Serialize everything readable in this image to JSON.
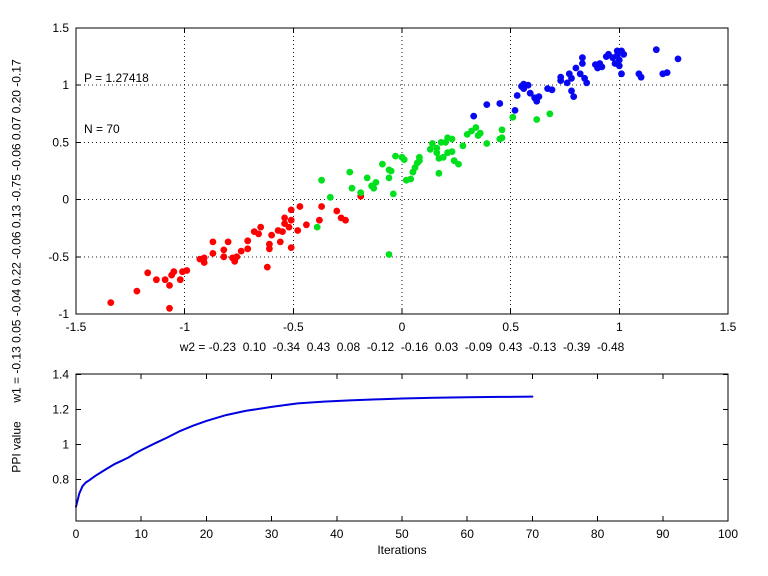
{
  "figure": {
    "background": "#ffffff",
    "axis_color": "#000000",
    "grid_color": "#1a1a1a"
  },
  "annotation": {
    "p_label": "P = 1.27418",
    "n_label": "N = 70"
  },
  "chart_data": [
    {
      "id": "scatter",
      "type": "scatter",
      "title": "",
      "xlabel": "w2 = -0.23  0.10  -0.34  0.43  0.08  -0.12  -0.16  0.03  -0.09  0.43  -0.13  -0.39  -0.48",
      "ylabel": "w1 = -0.13 0.05 -0.04 0.22 -0.06 0.13 -0.75 -0.06 0.07 0.20 -0.17",
      "xlim": [
        -1.5,
        1.5
      ],
      "ylim": [
        -1,
        1.5
      ],
      "xtick_values": [
        -1.5,
        -1,
        -0.5,
        0,
        0.5,
        1,
        1.5
      ],
      "xtick_labels": [
        "-1.5",
        "-1",
        "-0.5",
        "0",
        "0.5",
        "1",
        "1.5"
      ],
      "ytick_values": [
        -1,
        -0.5,
        0,
        0.5,
        1,
        1.5
      ],
      "ytick_labels": [
        "-1",
        "-0.5",
        "0",
        "0.5",
        "1",
        "1.5"
      ],
      "grid": true,
      "annotations": [
        "P = 1.27418",
        "N = 70"
      ],
      "series": [
        {
          "name": "cluster-red",
          "color": "#ff0000",
          "marker": "dot",
          "points": [
            [
              -1.34,
              -0.9
            ],
            [
              -1.22,
              -0.8
            ],
            [
              -1.17,
              -0.64
            ],
            [
              -1.13,
              -0.7
            ],
            [
              -1.09,
              -0.7
            ],
            [
              -1.07,
              -0.75
            ],
            [
              -1.07,
              -0.95
            ],
            [
              -1.06,
              -0.66
            ],
            [
              -1.05,
              -0.63
            ],
            [
              -1.02,
              -0.7
            ],
            [
              -1.01,
              -0.63
            ],
            [
              -0.99,
              -0.62
            ],
            [
              -0.93,
              -0.52
            ],
            [
              -0.91,
              -0.51
            ],
            [
              -0.91,
              -0.55
            ],
            [
              -0.87,
              -0.47
            ],
            [
              -0.87,
              -0.37
            ],
            [
              -0.82,
              -0.5
            ],
            [
              -0.82,
              -0.44
            ],
            [
              -0.8,
              -0.37
            ],
            [
              -0.78,
              -0.51
            ],
            [
              -0.77,
              -0.54
            ],
            [
              -0.76,
              -0.5
            ],
            [
              -0.74,
              -0.45
            ],
            [
              -0.71,
              -0.43
            ],
            [
              -0.71,
              -0.36
            ],
            [
              -0.68,
              -0.28
            ],
            [
              -0.66,
              -0.3
            ],
            [
              -0.65,
              -0.24
            ],
            [
              -0.62,
              -0.59
            ],
            [
              -0.61,
              -0.39
            ],
            [
              -0.61,
              -0.43
            ],
            [
              -0.6,
              -0.31
            ],
            [
              -0.57,
              -0.27
            ],
            [
              -0.56,
              -0.37
            ],
            [
              -0.55,
              -0.28
            ],
            [
              -0.54,
              -0.21
            ],
            [
              -0.54,
              -0.16
            ],
            [
              -0.52,
              -0.24
            ],
            [
              -0.51,
              -0.42
            ],
            [
              -0.51,
              -0.09
            ],
            [
              -0.51,
              -0.18
            ],
            [
              -0.48,
              -0.27
            ],
            [
              -0.47,
              -0.06
            ],
            [
              -0.44,
              -0.22
            ],
            [
              -0.37,
              -0.06
            ],
            [
              -0.38,
              -0.18
            ],
            [
              -0.3,
              -0.1
            ],
            [
              -0.28,
              -0.16
            ],
            [
              -0.26,
              -0.18
            ],
            [
              -0.19,
              0.03
            ]
          ]
        },
        {
          "name": "cluster-green",
          "color": "#00e01c",
          "marker": "dot",
          "points": [
            [
              -0.39,
              -0.24
            ],
            [
              -0.37,
              0.17
            ],
            [
              -0.33,
              0.02
            ],
            [
              -0.24,
              0.24
            ],
            [
              -0.23,
              0.1
            ],
            [
              -0.19,
              0.06
            ],
            [
              -0.16,
              0.19
            ],
            [
              -0.14,
              0.12
            ],
            [
              -0.13,
              0.1
            ],
            [
              -0.12,
              0.15
            ],
            [
              -0.09,
              0.31
            ],
            [
              -0.06,
              0.26
            ],
            [
              -0.06,
              -0.48
            ],
            [
              -0.06,
              0.19
            ],
            [
              -0.05,
              0.25
            ],
            [
              -0.04,
              0.05
            ],
            [
              -0.03,
              0.38
            ],
            [
              0.0,
              0.37
            ],
            [
              0.01,
              0.35
            ],
            [
              0.02,
              0.17
            ],
            [
              0.04,
              0.18
            ],
            [
              0.05,
              0.24
            ],
            [
              0.06,
              0.28
            ],
            [
              0.07,
              0.32
            ],
            [
              0.08,
              0.34
            ],
            [
              0.08,
              0.37
            ],
            [
              0.13,
              0.44
            ],
            [
              0.14,
              0.49
            ],
            [
              0.16,
              0.41
            ],
            [
              0.16,
              0.45
            ],
            [
              0.17,
              0.23
            ],
            [
              0.17,
              0.36
            ],
            [
              0.18,
              0.5
            ],
            [
              0.19,
              0.37
            ],
            [
              0.2,
              0.5
            ],
            [
              0.21,
              0.54
            ],
            [
              0.21,
              0.41
            ],
            [
              0.23,
              0.42
            ],
            [
              0.23,
              0.53
            ],
            [
              0.24,
              0.34
            ],
            [
              0.26,
              0.31
            ],
            [
              0.28,
              0.47
            ],
            [
              0.3,
              0.57
            ],
            [
              0.32,
              0.6
            ],
            [
              0.34,
              0.63
            ],
            [
              0.35,
              0.56
            ],
            [
              0.36,
              0.58
            ],
            [
              0.39,
              0.49
            ],
            [
              0.45,
              0.53
            ],
            [
              0.46,
              0.61
            ],
            [
              0.46,
              0.54
            ],
            [
              0.51,
              0.72
            ],
            [
              0.62,
              0.7
            ],
            [
              0.68,
              0.75
            ]
          ]
        },
        {
          "name": "cluster-blue",
          "color": "#0808f0",
          "marker": "dot",
          "points": [
            [
              0.33,
              0.73
            ],
            [
              0.39,
              0.83
            ],
            [
              0.45,
              0.84
            ],
            [
              0.52,
              0.78
            ],
            [
              0.53,
              0.91
            ],
            [
              0.55,
              0.99
            ],
            [
              0.56,
              1.01
            ],
            [
              0.56,
              0.97
            ],
            [
              0.58,
              1.0
            ],
            [
              0.59,
              0.93
            ],
            [
              0.61,
              0.89
            ],
            [
              0.62,
              0.86
            ],
            [
              0.63,
              0.9
            ],
            [
              0.67,
              0.97
            ],
            [
              0.69,
              0.96
            ],
            [
              0.73,
              1.04
            ],
            [
              0.73,
              1.07
            ],
            [
              0.76,
              1.02
            ],
            [
              0.77,
              1.1
            ],
            [
              0.78,
              1.06
            ],
            [
              0.78,
              0.95
            ],
            [
              0.79,
              0.9
            ],
            [
              0.8,
              1.15
            ],
            [
              0.82,
              1.1
            ],
            [
              0.83,
              1.19
            ],
            [
              0.83,
              1.24
            ],
            [
              0.84,
              1.06
            ],
            [
              0.85,
              1.02
            ],
            [
              0.89,
              1.18
            ],
            [
              0.9,
              1.15
            ],
            [
              0.91,
              1.19
            ],
            [
              0.92,
              1.16
            ],
            [
              0.94,
              1.25
            ],
            [
              0.95,
              1.27
            ],
            [
              0.97,
              1.24
            ],
            [
              0.98,
              1.19
            ],
            [
              0.99,
              1.3
            ],
            [
              0.99,
              1.26
            ],
            [
              1.0,
              1.22
            ],
            [
              1.0,
              1.17
            ],
            [
              1.01,
              1.1
            ],
            [
              1.01,
              1.3
            ],
            [
              1.02,
              1.27
            ],
            [
              1.09,
              1.1
            ],
            [
              1.1,
              1.07
            ],
            [
              1.17,
              1.31
            ],
            [
              1.2,
              1.1
            ],
            [
              1.22,
              1.11
            ],
            [
              1.27,
              1.23
            ]
          ]
        }
      ]
    },
    {
      "id": "convergence",
      "type": "line",
      "title": "",
      "xlabel": "Iterations",
      "ylabel": "PPI value",
      "xlim": [
        0,
        100
      ],
      "ylim": [
        0.563,
        1.403
      ],
      "xtick_values": [
        0,
        10,
        20,
        30,
        40,
        50,
        60,
        70,
        80,
        90,
        100
      ],
      "xtick_labels": [
        "0",
        "10",
        "20",
        "30",
        "40",
        "50",
        "60",
        "70",
        "80",
        "90",
        "100"
      ],
      "ytick_values": [
        0.8,
        1.0,
        1.2,
        1.4
      ],
      "ytick_labels": [
        "0.8",
        "1",
        "1.2",
        "1.4"
      ],
      "grid": false,
      "series": [
        {
          "name": "ppi-curve",
          "color": "#0000e0",
          "width": 2,
          "x": [
            0,
            0.5,
            1,
            1.5,
            2,
            3,
            4,
            5,
            6,
            7,
            8,
            9,
            10,
            12,
            14,
            16,
            18,
            20,
            23,
            26,
            30,
            34,
            38,
            42,
            46,
            50,
            55,
            60,
            65,
            70
          ],
          "y": [
            0.645,
            0.72,
            0.762,
            0.783,
            0.795,
            0.822,
            0.845,
            0.868,
            0.89,
            0.907,
            0.925,
            0.948,
            0.968,
            1.005,
            1.04,
            1.078,
            1.108,
            1.135,
            1.168,
            1.192,
            1.215,
            1.235,
            1.245,
            1.252,
            1.258,
            1.263,
            1.267,
            1.27,
            1.272,
            1.274
          ]
        }
      ]
    }
  ]
}
